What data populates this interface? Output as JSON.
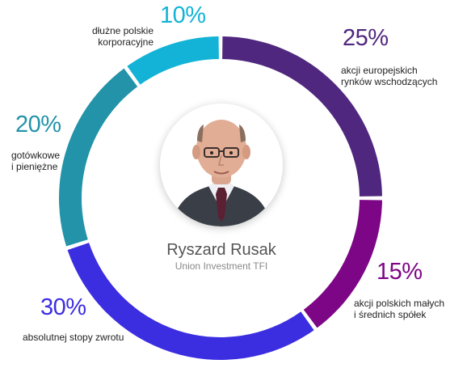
{
  "chart_data": {
    "type": "pie",
    "slices": [
      {
        "label": "akcji europejskich\nrynków wschodzących",
        "value": 25,
        "value_label": "25%",
        "color": "#50277f"
      },
      {
        "label": "akcji polskich małych\ni średnich spółek",
        "value": 15,
        "value_label": "15%",
        "color": "#7d0686"
      },
      {
        "label": "absolutnej stopy zwrotu",
        "value": 30,
        "value_label": "30%",
        "color": "#3b2de0"
      },
      {
        "label": "gotówkowe\ni pieniężne",
        "value": 20,
        "value_label": "20%",
        "color": "#2293a8"
      },
      {
        "label": "dłużne polskie\nkorporacyjne",
        "value": 10,
        "value_label": "10%",
        "color": "#12b3d6"
      }
    ]
  },
  "center": {
    "name": "Ryszard Rusak",
    "organization": "Union Investment TFI"
  }
}
